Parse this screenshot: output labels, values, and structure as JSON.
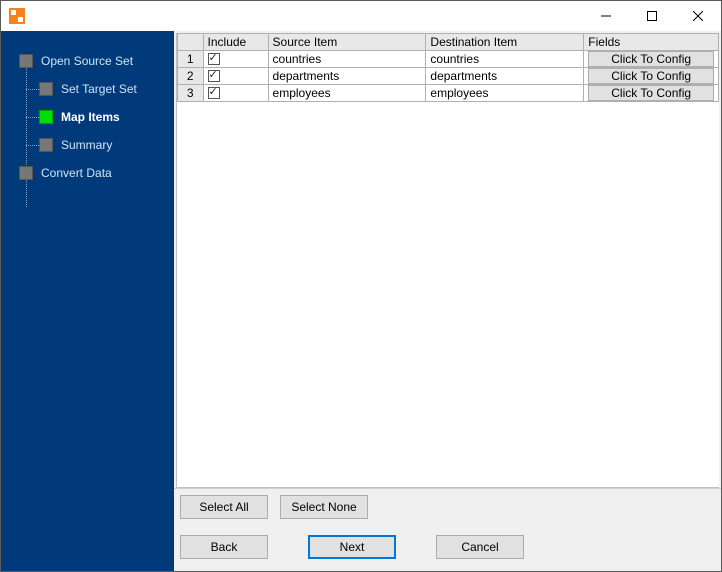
{
  "colors": {
    "sidebar_bg": "#003a7a",
    "accent_icon": "#f58220",
    "active_step": "#00e000",
    "inactive_step": "#777777",
    "header_cell_bg": "#e8e8e8",
    "button_bg": "#e1e1e1",
    "button_border": "#adadad",
    "primary_border": "#0078d7",
    "grid_border": "#b0b0b0"
  },
  "steps": {
    "root": {
      "label": "Open Source Set",
      "current": false
    },
    "children": [
      {
        "label": "Set Target Set",
        "current": false
      },
      {
        "label": "Map Items",
        "current": true
      },
      {
        "label": "Summary",
        "current": false
      }
    ],
    "root2": {
      "label": "Convert Data",
      "current": false
    }
  },
  "table": {
    "columns": {
      "include": "Include",
      "source": "Source Item",
      "destination": "Destination Item",
      "fields": "Fields"
    },
    "config_button_label": "Click To Config",
    "rows": [
      {
        "num": "1",
        "include": true,
        "source": "countries",
        "destination": "countries"
      },
      {
        "num": "2",
        "include": true,
        "source": "departments",
        "destination": "departments"
      },
      {
        "num": "3",
        "include": true,
        "source": "employees",
        "destination": "employees"
      }
    ]
  },
  "buttons": {
    "select_all": "Select All",
    "select_none": "Select None",
    "back": "Back",
    "next": "Next",
    "cancel": "Cancel"
  }
}
